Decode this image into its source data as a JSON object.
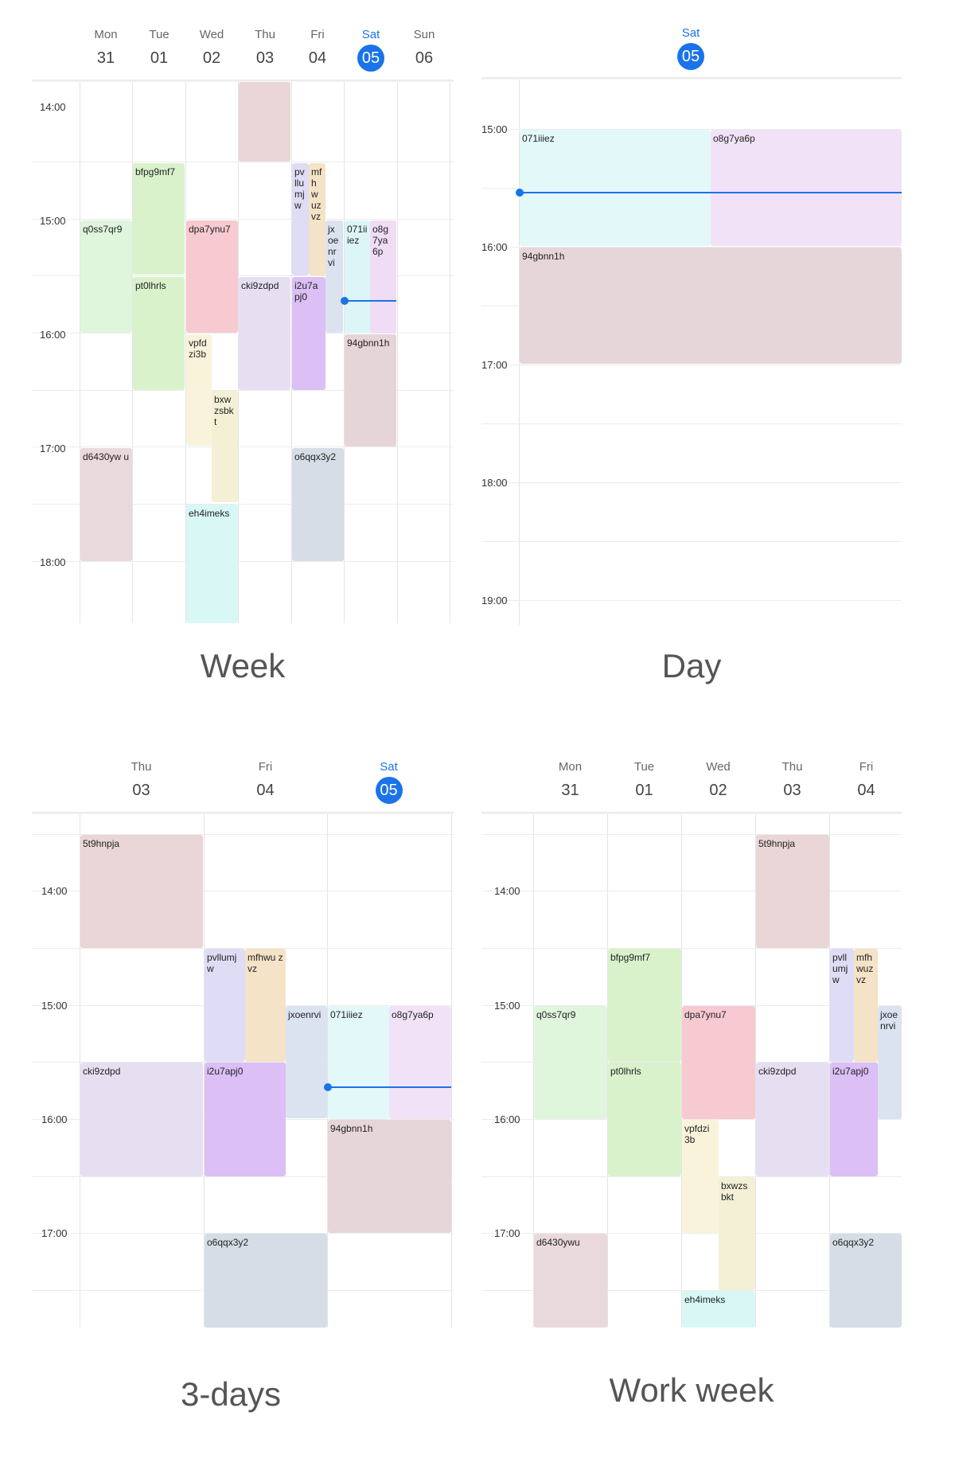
{
  "panels": {
    "week": {
      "caption": "Week",
      "days": [
        {
          "name": "Mon",
          "num": "31"
        },
        {
          "name": "Tue",
          "num": "01"
        },
        {
          "name": "Wed",
          "num": "02"
        },
        {
          "name": "Thu",
          "num": "03"
        },
        {
          "name": "Fri",
          "num": "04"
        },
        {
          "name": "Sat",
          "num": "05",
          "today": true
        },
        {
          "name": "Sun",
          "num": "06"
        }
      ],
      "times": [
        "14:00",
        "15:00",
        "16:00",
        "17:00",
        "18:00"
      ],
      "events": [
        {
          "label": "",
          "color": "#ead6d6"
        },
        {
          "label": "bfpg9mf7",
          "color": "#d9f2cc"
        },
        {
          "label": "q0ss7qr9",
          "color": "#dff5dc"
        },
        {
          "label": "pt0lhrls",
          "color": "#d9f2cc"
        },
        {
          "label": "dpa7ynu7",
          "color": "#f7c9d0"
        },
        {
          "label": "vpfd zi3b",
          "color": "#faf3dc"
        },
        {
          "label": "bxw zsbk t",
          "color": "#f3f0d6"
        },
        {
          "label": "cki9zdpd",
          "color": "#e6dff2"
        },
        {
          "label": "pv llu mj w",
          "color": "#dfdcf5"
        },
        {
          "label": "mf h w uz vz",
          "color": "#f5e3c7"
        },
        {
          "label": "jx oe nr vi",
          "color": "#dbe3f0"
        },
        {
          "label": "071ii iez",
          "color": "#dcf6f7"
        },
        {
          "label": "o8g 7ya 6p",
          "color": "#f0dcf5"
        },
        {
          "label": "i2u7a pj0",
          "color": "#dbbff5"
        },
        {
          "label": "94gbnn1h",
          "color": "#e6d5d8"
        },
        {
          "label": "d6430yw u",
          "color": "#ead9dc"
        },
        {
          "label": "o6qqx3y2",
          "color": "#d6dde6"
        },
        {
          "label": "eh4imeks",
          "color": "#d8f7f5"
        }
      ]
    },
    "day": {
      "caption": "Day",
      "day": {
        "name": "Sat",
        "num": "05"
      },
      "times": [
        "15:00",
        "16:00",
        "17:00",
        "18:00",
        "19:00"
      ],
      "events": [
        {
          "label": "071iiiez",
          "color": "#e3f8f9"
        },
        {
          "label": "o8g7ya6p",
          "color": "#f2e2f7"
        },
        {
          "label": "94gbnn1h",
          "color": "#e6d6d9"
        }
      ]
    },
    "three_days": {
      "caption": "3-days",
      "days": [
        {
          "name": "Thu",
          "num": "03"
        },
        {
          "name": "Fri",
          "num": "04"
        },
        {
          "name": "Sat",
          "num": "05",
          "today": true
        }
      ],
      "times": [
        "14:00",
        "15:00",
        "16:00",
        "17:00"
      ],
      "events": [
        {
          "label": "5t9hnpja",
          "color": "#ead6d6"
        },
        {
          "label": "pvllumj w",
          "color": "#dfdcf5"
        },
        {
          "label": "mfhwu zvz",
          "color": "#f5e3c7"
        },
        {
          "label": "jxoenrvi",
          "color": "#dbe3f0"
        },
        {
          "label": "071iiiez",
          "color": "#e3f8f9"
        },
        {
          "label": "o8g7ya6p",
          "color": "#f2e2f7"
        },
        {
          "label": "cki9zdpd",
          "color": "#e6dff2"
        },
        {
          "label": "i2u7apj0",
          "color": "#dbbff5"
        },
        {
          "label": "94gbnn1h",
          "color": "#e6d6d9"
        },
        {
          "label": "o6qqx3y2",
          "color": "#d6dde6"
        }
      ]
    },
    "work_week": {
      "caption": "Work week",
      "days": [
        {
          "name": "Mon",
          "num": "31"
        },
        {
          "name": "Tue",
          "num": "01"
        },
        {
          "name": "Wed",
          "num": "02"
        },
        {
          "name": "Thu",
          "num": "03"
        },
        {
          "name": "Fri",
          "num": "04"
        }
      ],
      "times": [
        "14:00",
        "15:00",
        "16:00",
        "17:00"
      ],
      "events": [
        {
          "label": "5t9hnpja",
          "color": "#ead6d6"
        },
        {
          "label": "bfpg9mf7",
          "color": "#d9f2cc"
        },
        {
          "label": "q0ss7qr9",
          "color": "#dff5dc"
        },
        {
          "label": "pt0lhrls",
          "color": "#d9f2cc"
        },
        {
          "label": "dpa7ynu7",
          "color": "#f7c9d0"
        },
        {
          "label": "vpfdzi 3b",
          "color": "#faf3dc"
        },
        {
          "label": "bxwzs bkt",
          "color": "#f3f0d6"
        },
        {
          "label": "cki9zdpd",
          "color": "#e6dff2"
        },
        {
          "label": "pvll umj w",
          "color": "#dfdcf5"
        },
        {
          "label": "mfh wuz vz",
          "color": "#f5e3c7"
        },
        {
          "label": "jxoe nrvi",
          "color": "#dbe3f0"
        },
        {
          "label": "i2u7apj0",
          "color": "#dbbff5"
        },
        {
          "label": "d6430ywu",
          "color": "#ead9dc"
        },
        {
          "label": "o6qqx3y2",
          "color": "#d6dde6"
        },
        {
          "label": "eh4imeks",
          "color": "#d8f7f5"
        }
      ]
    }
  }
}
